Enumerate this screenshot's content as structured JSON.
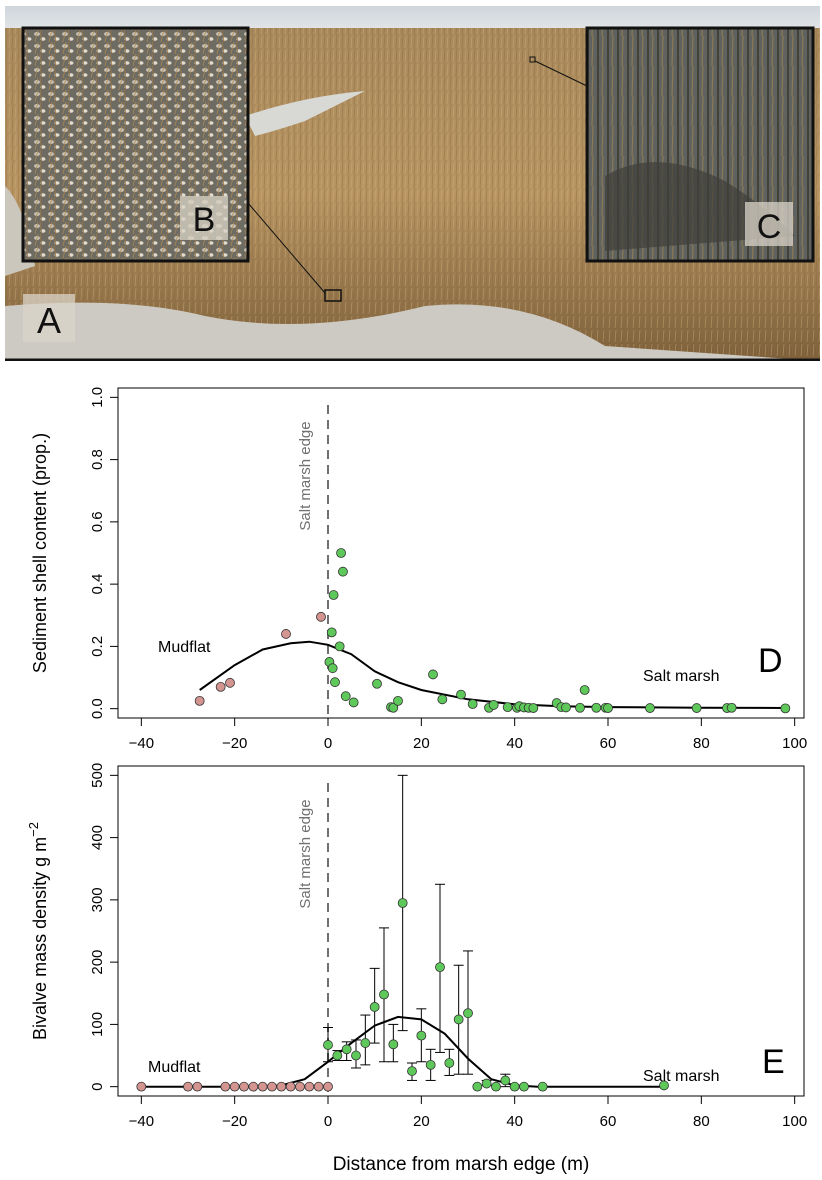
{
  "photo": {
    "panel_labels": {
      "a": "A",
      "b": "B",
      "c": "C"
    }
  },
  "charts": [
    {
      "type": "scatter",
      "panel_label": "D",
      "ylabel": "Sediment shell content (prop.)",
      "xlim": [
        -45,
        102
      ],
      "ylim": [
        -0.03,
        1.03
      ],
      "xticks": [
        -40,
        -20,
        0,
        20,
        40,
        60,
        80,
        100
      ],
      "yticks": [
        0.0,
        0.2,
        0.4,
        0.6,
        0.8,
        1.0
      ],
      "ytick_labels": [
        "0.0",
        "0.2",
        "0.4",
        "0.6",
        "0.8",
        "1.0"
      ],
      "edge_label": "Salt marsh edge",
      "annotations": {
        "mudflat": "Mudflat",
        "salt_marsh": "Salt marsh"
      },
      "colors": {
        "mudflat": "#d49490",
        "salt_marsh": "#5ec95a"
      },
      "mudflat_points": [
        [
          -27.5,
          0.025
        ],
        [
          -23,
          0.07
        ],
        [
          -21,
          0.083
        ],
        [
          -9,
          0.24
        ],
        [
          -1.5,
          0.295
        ]
      ],
      "salt_marsh_points": [
        [
          0.3,
          0.15
        ],
        [
          0.8,
          0.245
        ],
        [
          1,
          0.13
        ],
        [
          1.2,
          0.365
        ],
        [
          1.5,
          0.085
        ],
        [
          2.5,
          0.2
        ],
        [
          2.8,
          0.5
        ],
        [
          3.2,
          0.44
        ],
        [
          3.8,
          0.04
        ],
        [
          5.5,
          0.02
        ],
        [
          10.5,
          0.08
        ],
        [
          13.5,
          0.005
        ],
        [
          14,
          0.003
        ],
        [
          15,
          0.025
        ],
        [
          22.5,
          0.11
        ],
        [
          24.5,
          0.03
        ],
        [
          28.5,
          0.045
        ],
        [
          31,
          0.015
        ],
        [
          34.5,
          0.003
        ],
        [
          35.5,
          0.012
        ],
        [
          38.5,
          0.005
        ],
        [
          40.5,
          0.003
        ],
        [
          41,
          0.008
        ],
        [
          42,
          0.004
        ],
        [
          43,
          0.003
        ],
        [
          44,
          0.002
        ],
        [
          49,
          0.018
        ],
        [
          50,
          0.005
        ],
        [
          51,
          0.004
        ],
        [
          54,
          0.003
        ],
        [
          55,
          0.06
        ],
        [
          57.5,
          0.003
        ],
        [
          59.5,
          0.003
        ],
        [
          60,
          0.002
        ],
        [
          69,
          0.002
        ],
        [
          79,
          0.002
        ],
        [
          85.5,
          0.002
        ],
        [
          86.5,
          0.003
        ],
        [
          98,
          0.001
        ]
      ],
      "fit_curve": [
        [
          -27.5,
          0.06
        ],
        [
          -20,
          0.14
        ],
        [
          -14,
          0.19
        ],
        [
          -8,
          0.21
        ],
        [
          -4,
          0.215
        ],
        [
          0,
          0.205
        ],
        [
          5,
          0.175
        ],
        [
          10,
          0.12
        ],
        [
          15,
          0.085
        ],
        [
          20,
          0.06
        ],
        [
          30,
          0.03
        ],
        [
          40,
          0.014
        ],
        [
          50,
          0.008
        ],
        [
          60,
          0.005
        ],
        [
          80,
          0.003
        ],
        [
          98,
          0.002
        ]
      ]
    },
    {
      "type": "scatter",
      "panel_label": "E",
      "ylabel_main": "Bivalve mass density g m",
      "ylabel_sup": "−2",
      "xlabel": "Distance from marsh edge (m)",
      "xlim": [
        -45,
        102
      ],
      "ylim": [
        -15,
        515
      ],
      "xticks": [
        -40,
        -20,
        0,
        20,
        40,
        60,
        80,
        100
      ],
      "yticks": [
        0,
        100,
        200,
        300,
        400,
        500
      ],
      "edge_label": "Salt marsh edge",
      "annotations": {
        "mudflat": "Mudflat",
        "salt_marsh": "Salt marsh"
      },
      "colors": {
        "mudflat": "#d49490",
        "salt_marsh": "#5ec95a"
      },
      "mudflat_points": [
        [
          -40,
          0
        ],
        [
          -30,
          0
        ],
        [
          -28,
          0
        ],
        [
          -22,
          0
        ],
        [
          -20,
          0
        ],
        [
          -18,
          0
        ],
        [
          -16,
          0
        ],
        [
          -14,
          0
        ],
        [
          -12,
          0
        ],
        [
          -10,
          0
        ],
        [
          -8,
          0
        ],
        [
          -6,
          0
        ],
        [
          -4,
          0
        ],
        [
          -2,
          0
        ],
        [
          0,
          0
        ]
      ],
      "salt_marsh_points": [
        {
          "x": 0,
          "y": 67,
          "lo": 40,
          "hi": 95
        },
        {
          "x": 2,
          "y": 50,
          "lo": 42,
          "hi": 58
        },
        {
          "x": 4,
          "y": 60,
          "lo": 42,
          "hi": 72
        },
        {
          "x": 6,
          "y": 50,
          "lo": 30,
          "hi": 75
        },
        {
          "x": 8,
          "y": 70,
          "lo": 35,
          "hi": 115
        },
        {
          "x": 10,
          "y": 128,
          "lo": 70,
          "hi": 190
        },
        {
          "x": 12,
          "y": 148,
          "lo": 40,
          "hi": 255
        },
        {
          "x": 14,
          "y": 68,
          "lo": 40,
          "hi": 100
        },
        {
          "x": 16,
          "y": 295,
          "lo": 90,
          "hi": 500
        },
        {
          "x": 18,
          "y": 25,
          "lo": 10,
          "hi": 38
        },
        {
          "x": 20,
          "y": 82,
          "lo": 40,
          "hi": 125
        },
        {
          "x": 22,
          "y": 35,
          "lo": 10,
          "hi": 60
        },
        {
          "x": 24,
          "y": 192,
          "lo": 55,
          "hi": 325
        },
        {
          "x": 26,
          "y": 38,
          "lo": 18,
          "hi": 60
        },
        {
          "x": 28,
          "y": 108,
          "lo": 20,
          "hi": 195
        },
        {
          "x": 30,
          "y": 118,
          "lo": 20,
          "hi": 218
        },
        {
          "x": 32,
          "y": 0,
          "lo": 0,
          "hi": 0
        },
        {
          "x": 34,
          "y": 5,
          "lo": 2,
          "hi": 10
        },
        {
          "x": 36,
          "y": 0,
          "lo": 0,
          "hi": 0
        },
        {
          "x": 38,
          "y": 10,
          "lo": 0,
          "hi": 20
        },
        {
          "x": 40,
          "y": 0,
          "lo": 0,
          "hi": 0
        },
        {
          "x": 42,
          "y": 0,
          "lo": 0,
          "hi": 0
        },
        {
          "x": 46,
          "y": 0,
          "lo": 0,
          "hi": 0
        },
        {
          "x": 72,
          "y": 2,
          "lo": 2,
          "hi": 2
        }
      ],
      "fit_curve": [
        [
          -40,
          0
        ],
        [
          -15,
          0
        ],
        [
          -10,
          2
        ],
        [
          -5,
          12
        ],
        [
          0,
          40
        ],
        [
          5,
          70
        ],
        [
          10,
          98
        ],
        [
          15,
          112
        ],
        [
          20,
          108
        ],
        [
          25,
          85
        ],
        [
          30,
          45
        ],
        [
          35,
          12
        ],
        [
          40,
          2
        ],
        [
          45,
          0
        ],
        [
          72,
          0
        ]
      ]
    }
  ]
}
